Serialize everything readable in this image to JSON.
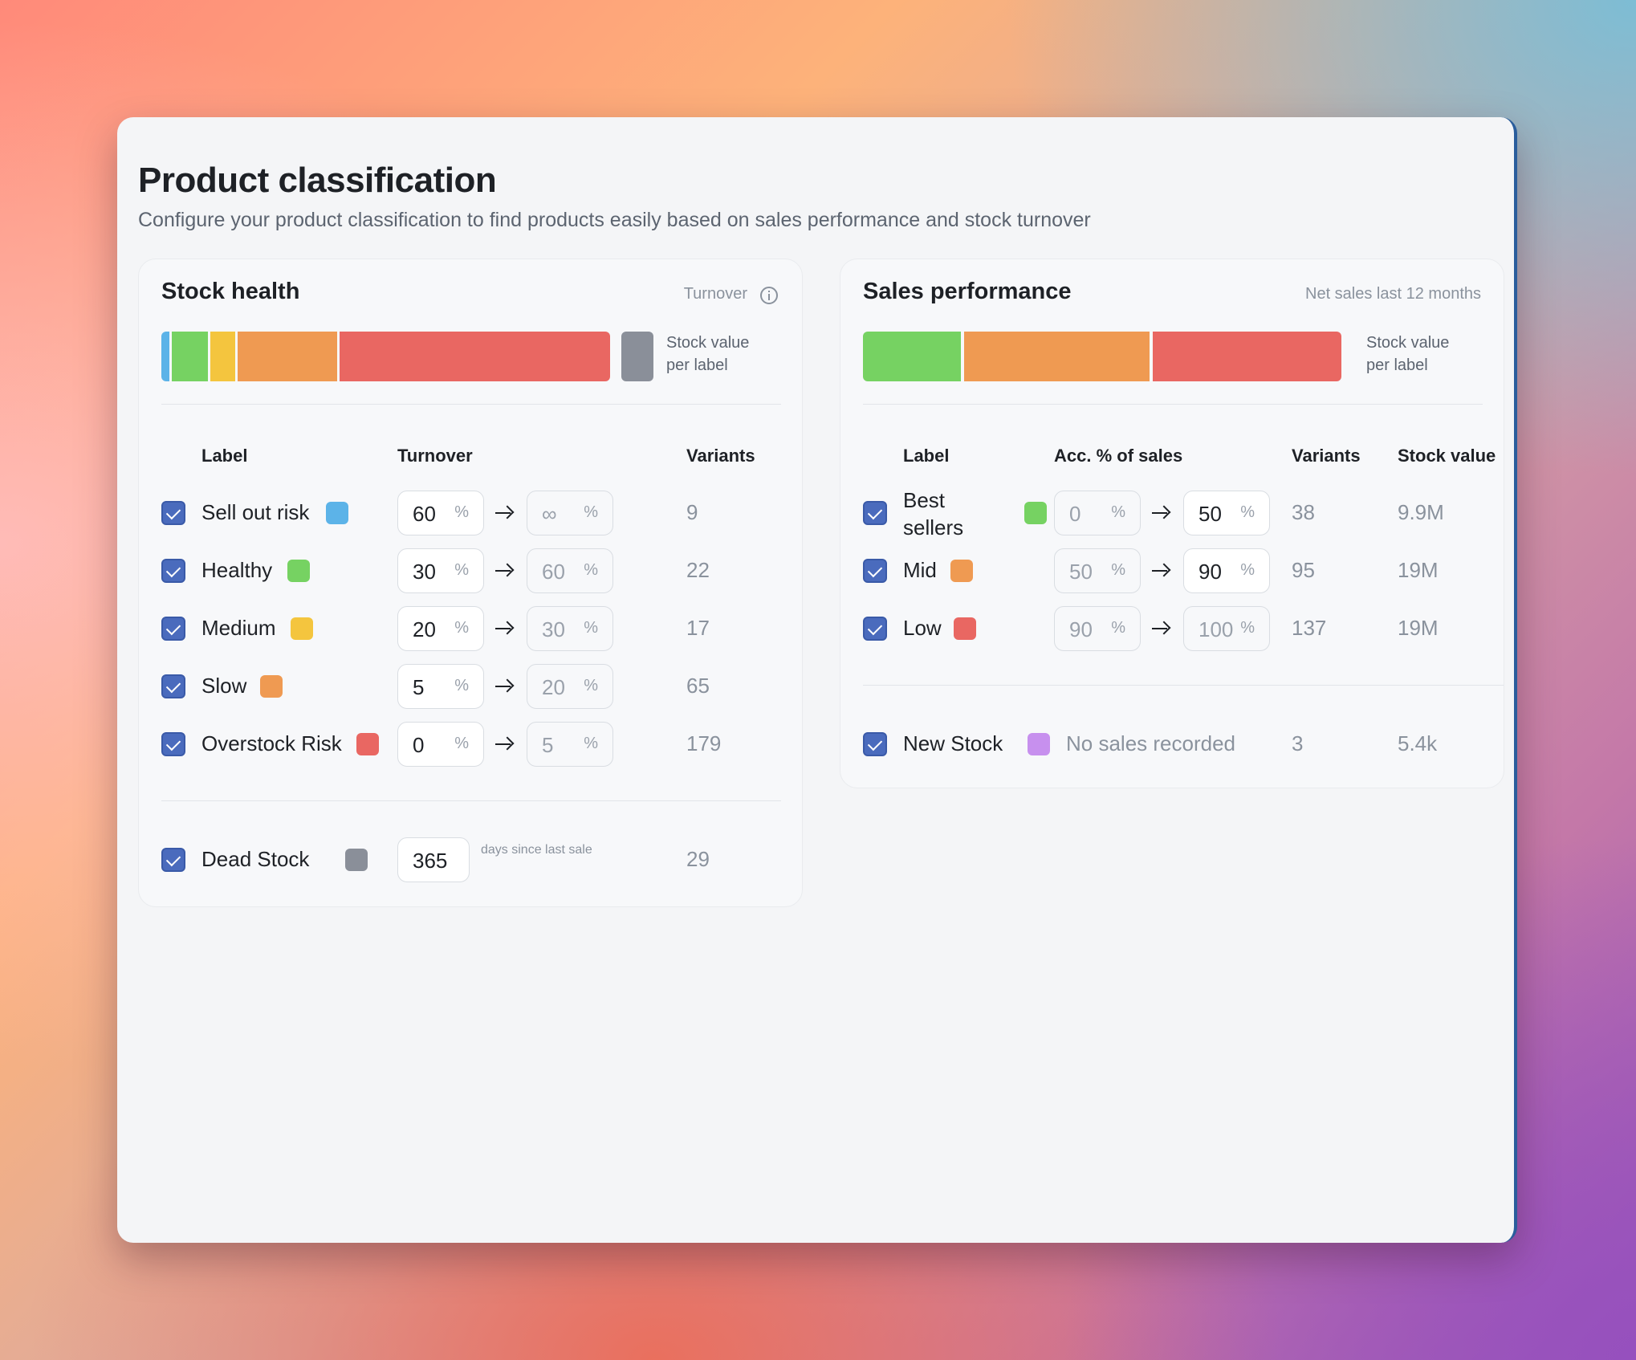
{
  "page": {
    "title": "Product classification",
    "subtitle": "Configure your product classification to find products easily based on sales performance and stock turnover"
  },
  "stock_health": {
    "title": "Stock health",
    "meta": "Turnover",
    "legend": "Stock value per label",
    "legend_color": "#8a8f99",
    "columns": {
      "label": "Label",
      "turnover": "Turnover",
      "variants": "Variants"
    },
    "rows": [
      {
        "label": "Sell out risk",
        "color": "#5cb3e8",
        "from": "60",
        "to": "∞",
        "variants": "9"
      },
      {
        "label": "Healthy",
        "color": "#76d262",
        "from": "30",
        "to": "60",
        "variants": "22"
      },
      {
        "label": "Medium",
        "color": "#f4c53e",
        "from": "20",
        "to": "30",
        "variants": "17"
      },
      {
        "label": "Slow",
        "color": "#ef9a52",
        "from": "5",
        "to": "20",
        "variants": "65"
      },
      {
        "label": "Overstock Risk",
        "color": "#e96762",
        "from": "0",
        "to": "5",
        "variants": "179"
      }
    ],
    "dead_stock": {
      "label": "Dead Stock",
      "color": "#8a8f99",
      "days": "365",
      "note": "days since last sale",
      "variants": "29"
    },
    "bar": [
      {
        "color": "#5cb3e8",
        "share": 0.018
      },
      {
        "color": "#76d262",
        "share": 0.083
      },
      {
        "color": "#f4c53e",
        "share": 0.057
      },
      {
        "color": "#ef9a52",
        "share": 0.226
      },
      {
        "color": "#e96762",
        "share": 0.616
      }
    ]
  },
  "sales_performance": {
    "title": "Sales performance",
    "meta": "Net sales last 12 months",
    "legend": "Stock value per label",
    "columns": {
      "label": "Label",
      "acc": "Acc. % of sales",
      "variants": "Variants",
      "stock_value": "Stock value"
    },
    "rows": [
      {
        "label": "Best sellers",
        "color": "#76d262",
        "from": "0",
        "to": "50",
        "variants": "38",
        "stock_value": "9.9M"
      },
      {
        "label": "Mid",
        "color": "#ef9a52",
        "from": "50",
        "to": "90",
        "variants": "95",
        "stock_value": "19M"
      },
      {
        "label": "Low",
        "color": "#e96762",
        "from": "90",
        "to": "100",
        "variants": "137",
        "stock_value": "19M"
      }
    ],
    "new_stock": {
      "label": "New Stock",
      "color": "#c790ee",
      "note": "No sales recorded",
      "variants": "3",
      "stock_value": "5.4k"
    },
    "bar": [
      {
        "color": "#76d262",
        "share": 0.207
      },
      {
        "color": "#ef9a52",
        "share": 0.393
      },
      {
        "color": "#e96762",
        "share": 0.4
      }
    ]
  },
  "pct_symbol": "%"
}
